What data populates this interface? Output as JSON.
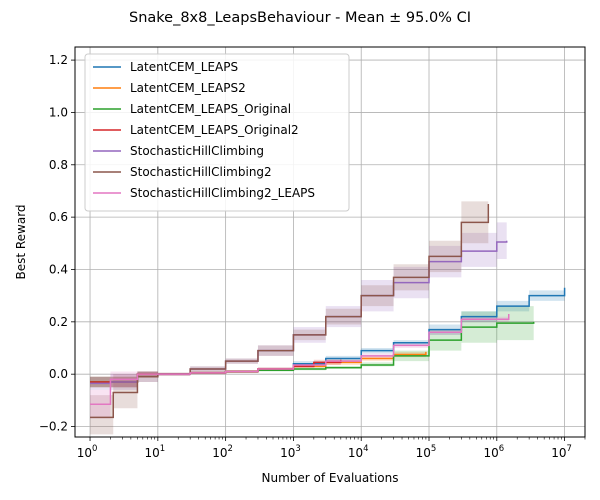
{
  "chart_data": {
    "type": "line",
    "title": "Snake_8x8_LeapsBehaviour - Mean ± 95.0% CI",
    "xlabel": "Number of Evaluations",
    "ylabel": "Best Reward",
    "xscale": "log",
    "xlim": [
      0.6,
      20000000
    ],
    "ylim": [
      -0.24,
      1.25
    ],
    "x_ticks": [
      {
        "value": 1,
        "base": "10",
        "exp": "0"
      },
      {
        "value": 10,
        "base": "10",
        "exp": "1"
      },
      {
        "value": 100,
        "base": "10",
        "exp": "2"
      },
      {
        "value": 1000,
        "base": "10",
        "exp": "3"
      },
      {
        "value": 10000,
        "base": "10",
        "exp": "4"
      },
      {
        "value": 100000,
        "base": "10",
        "exp": "5"
      },
      {
        "value": 1000000,
        "base": "10",
        "exp": "6"
      },
      {
        "value": 10000000,
        "base": "10",
        "exp": "7"
      }
    ],
    "y_ticks": [
      -0.2,
      0.0,
      0.2,
      0.4,
      0.6,
      0.8,
      1.0,
      1.2
    ],
    "y_tick_labels": [
      "−0.2",
      "0.0",
      "0.2",
      "0.4",
      "0.6",
      "0.8",
      "1.0",
      "1.2"
    ],
    "grid": true,
    "legend_position": "upper-left",
    "series": [
      {
        "name": "LatentCEM_LEAPS",
        "color": "#1f77b4",
        "x": [
          1,
          2,
          5,
          10,
          30,
          100,
          300,
          1000,
          3000,
          10000,
          30000,
          100000,
          300000,
          1000000,
          3000000,
          10000000
        ],
        "y": [
          -0.03,
          -0.03,
          0.0,
          0.0,
          0.005,
          0.01,
          0.02,
          0.04,
          0.06,
          0.09,
          0.12,
          0.17,
          0.22,
          0.26,
          0.3,
          0.33
        ],
        "lower": [
          -0.05,
          -0.05,
          -0.01,
          -0.005,
          0.0,
          0.005,
          0.015,
          0.03,
          0.05,
          0.08,
          0.11,
          0.15,
          0.2,
          0.24,
          0.28,
          0.32
        ],
        "upper": [
          -0.01,
          -0.01,
          0.01,
          0.005,
          0.01,
          0.015,
          0.025,
          0.05,
          0.07,
          0.1,
          0.13,
          0.19,
          0.24,
          0.28,
          0.32,
          0.345
        ]
      },
      {
        "name": "LatentCEM_LEAPS2",
        "color": "#ff7f0e",
        "x": [
          1,
          2,
          5,
          10,
          30,
          100,
          300,
          1000,
          3000,
          10000,
          30000,
          90000
        ],
        "y": [
          -0.03,
          -0.03,
          0.0,
          0.0,
          0.005,
          0.01,
          0.02,
          0.03,
          0.045,
          0.06,
          0.075,
          0.085
        ],
        "lower": [
          -0.05,
          -0.05,
          -0.01,
          -0.005,
          0.0,
          0.005,
          0.015,
          0.025,
          0.035,
          0.05,
          0.065,
          0.075
        ],
        "upper": [
          -0.01,
          -0.01,
          0.01,
          0.005,
          0.01,
          0.015,
          0.025,
          0.035,
          0.055,
          0.07,
          0.085,
          0.095
        ]
      },
      {
        "name": "LatentCEM_LEAPS_Original",
        "color": "#2ca02c",
        "x": [
          1,
          2,
          5,
          10,
          30,
          100,
          300,
          1000,
          3000,
          10000,
          30000,
          100000,
          300000,
          1000000,
          3500000
        ],
        "y": [
          -0.03,
          -0.03,
          0.0,
          0.0,
          0.005,
          0.01,
          0.015,
          0.02,
          0.025,
          0.035,
          0.07,
          0.13,
          0.18,
          0.195,
          0.2
        ],
        "lower": [
          -0.05,
          -0.05,
          -0.01,
          -0.005,
          0.0,
          0.005,
          0.01,
          0.015,
          0.02,
          0.03,
          0.05,
          0.09,
          0.12,
          0.13,
          0.13
        ],
        "upper": [
          -0.01,
          -0.01,
          0.01,
          0.005,
          0.01,
          0.015,
          0.02,
          0.025,
          0.03,
          0.045,
          0.09,
          0.17,
          0.24,
          0.26,
          0.27
        ]
      },
      {
        "name": "LatentCEM_LEAPS_Original2",
        "color": "#d62728",
        "x": [
          1,
          2,
          5,
          10,
          30,
          100,
          300,
          1000,
          2000,
          5000
        ],
        "y": [
          -0.03,
          -0.03,
          0.0,
          0.0,
          0.005,
          0.01,
          0.02,
          0.03,
          0.045,
          0.055
        ],
        "lower": [
          -0.05,
          -0.05,
          -0.01,
          -0.005,
          0.0,
          0.005,
          0.015,
          0.025,
          0.035,
          0.045
        ],
        "upper": [
          -0.01,
          -0.01,
          0.01,
          0.005,
          0.01,
          0.015,
          0.025,
          0.035,
          0.055,
          0.065
        ]
      },
      {
        "name": "StochasticHillClimbing",
        "color": "#9467bd",
        "x": [
          1,
          2,
          5,
          10,
          30,
          100,
          300,
          1000,
          3000,
          10000,
          30000,
          100000,
          300000,
          1000000,
          1400000
        ],
        "y": [
          -0.035,
          -0.03,
          -0.01,
          0.0,
          0.02,
          0.05,
          0.09,
          0.15,
          0.22,
          0.3,
          0.35,
          0.43,
          0.47,
          0.505,
          0.51
        ],
        "lower": [
          -0.06,
          -0.06,
          -0.03,
          -0.005,
          0.01,
          0.04,
          0.07,
          0.12,
          0.18,
          0.24,
          0.29,
          0.37,
          0.41,
          0.44,
          0.44
        ],
        "upper": [
          -0.01,
          0.0,
          0.01,
          0.005,
          0.03,
          0.06,
          0.11,
          0.18,
          0.26,
          0.36,
          0.41,
          0.49,
          0.54,
          0.58,
          0.58
        ]
      },
      {
        "name": "StochasticHillClimbing2",
        "color": "#8c564b",
        "x": [
          1,
          2,
          2.2,
          5,
          10,
          30,
          100,
          300,
          1000,
          3000,
          10000,
          30000,
          100000,
          300000,
          750000
        ],
        "y": [
          -0.165,
          -0.165,
          -0.07,
          -0.01,
          0.0,
          0.02,
          0.05,
          0.09,
          0.15,
          0.22,
          0.3,
          0.37,
          0.45,
          0.58,
          0.65
        ],
        "lower": [
          -0.23,
          -0.23,
          -0.13,
          -0.03,
          -0.005,
          0.01,
          0.04,
          0.07,
          0.13,
          0.19,
          0.26,
          0.32,
          0.39,
          0.5,
          0.56
        ],
        "upper": [
          -0.08,
          -0.08,
          0.0,
          0.01,
          0.005,
          0.03,
          0.06,
          0.11,
          0.17,
          0.25,
          0.34,
          0.42,
          0.51,
          0.66,
          0.7
        ]
      },
      {
        "name": "StochasticHillClimbing2_LEAPS",
        "color": "#e377c2",
        "x": [
          1,
          1.8,
          2,
          5,
          10,
          30,
          100,
          300,
          1000,
          3000,
          10000,
          30000,
          100000,
          300000,
          1500000
        ],
        "y": [
          -0.115,
          -0.115,
          -0.02,
          0.0,
          0.0,
          0.005,
          0.01,
          0.02,
          0.035,
          0.05,
          0.07,
          0.11,
          0.16,
          0.21,
          0.23
        ],
        "lower": [
          -0.17,
          -0.17,
          -0.05,
          -0.01,
          -0.005,
          0.0,
          0.005,
          0.015,
          0.03,
          0.045,
          0.06,
          0.1,
          0.15,
          0.2,
          0.22
        ],
        "upper": [
          -0.06,
          -0.06,
          0.01,
          0.01,
          0.005,
          0.01,
          0.015,
          0.025,
          0.04,
          0.055,
          0.08,
          0.12,
          0.17,
          0.22,
          0.24
        ]
      }
    ]
  }
}
